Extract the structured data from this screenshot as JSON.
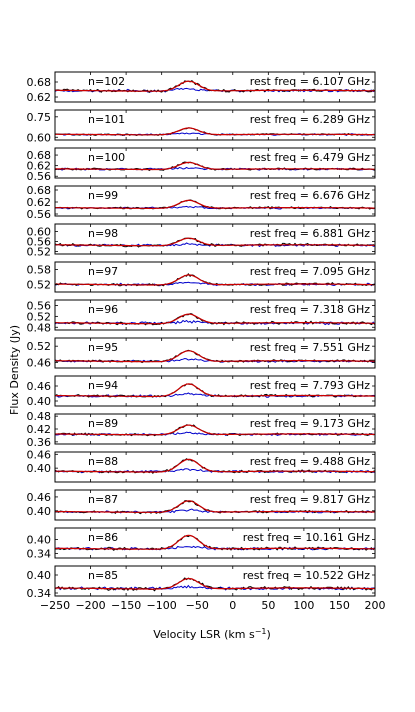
{
  "chart_data": {
    "type": "line",
    "ylabel": "Flux Density (Jy)",
    "xlabel_main": "Velocity LSR (km",
    "xlabel_unit": "s",
    "xlabel_exp": "−1",
    "xlabel_close": ")",
    "xlim": [
      -250,
      200
    ],
    "xticks": [
      -250,
      -200,
      -150,
      -100,
      -50,
      0,
      50,
      100,
      150,
      200
    ],
    "xtick_labels": [
      "−250",
      "−200",
      "−150",
      "−100",
      "−50",
      "0",
      "50",
      "100",
      "150",
      "200"
    ],
    "colors": {
      "data": "#000000",
      "fit": "#cc0000",
      "reference": "#0000cc"
    },
    "line_center": -62,
    "line_width": 14,
    "panels": [
      {
        "label": "n=102",
        "freq": "rest freq = 6.107 GHz",
        "ylim": [
          0.6,
          0.72
        ],
        "yticks": [
          0.62,
          0.68
        ],
        "ytick_labels": [
          "0.62",
          "0.68"
        ],
        "baseline": 0.645,
        "peak": 0.04,
        "noise": 0.006
      },
      {
        "label": "n=101",
        "freq": "rest freq = 6.289 GHz",
        "ylim": [
          0.58,
          0.8
        ],
        "yticks": [
          0.6,
          0.75
        ],
        "ytick_labels": [
          "0.60",
          "0.75"
        ],
        "baseline": 0.62,
        "peak": 0.05,
        "noise": 0.007
      },
      {
        "label": "n=100",
        "freq": "rest freq = 6.479 GHz",
        "ylim": [
          0.55,
          0.72
        ],
        "yticks": [
          0.56,
          0.62,
          0.68
        ],
        "ytick_labels": [
          "0.56",
          "0.62",
          "0.68"
        ],
        "baseline": 0.6,
        "peak": 0.04,
        "noise": 0.007
      },
      {
        "label": "n=99",
        "freq": "rest freq = 6.676 GHz",
        "ylim": [
          0.55,
          0.7
        ],
        "yticks": [
          0.56,
          0.62,
          0.68
        ],
        "ytick_labels": [
          "0.56",
          "0.62",
          "0.68"
        ],
        "baseline": 0.59,
        "peak": 0.04,
        "noise": 0.006
      },
      {
        "label": "n=98",
        "freq": "rest freq = 6.881 GHz",
        "ylim": [
          0.51,
          0.63
        ],
        "yticks": [
          0.52,
          0.56,
          0.6
        ],
        "ytick_labels": [
          "0.52",
          "0.56",
          "0.60"
        ],
        "baseline": 0.545,
        "peak": 0.03,
        "noise": 0.006
      },
      {
        "label": "n=97",
        "freq": "rest freq = 7.095 GHz",
        "ylim": [
          0.49,
          0.61
        ],
        "yticks": [
          0.52,
          0.58
        ],
        "ytick_labels": [
          "0.52",
          "0.58"
        ],
        "baseline": 0.52,
        "peak": 0.04,
        "noise": 0.006
      },
      {
        "label": "n=96",
        "freq": "rest freq = 7.318 GHz",
        "ylim": [
          0.47,
          0.58
        ],
        "yticks": [
          0.48,
          0.52,
          0.56
        ],
        "ytick_labels": [
          "0.48",
          "0.52",
          "0.56"
        ],
        "baseline": 0.495,
        "peak": 0.035,
        "noise": 0.006
      },
      {
        "label": "n=95",
        "freq": "rest freq = 7.551 GHz",
        "ylim": [
          0.44,
          0.55
        ],
        "yticks": [
          0.46,
          0.52
        ],
        "ytick_labels": [
          "0.46",
          "0.52"
        ],
        "baseline": 0.465,
        "peak": 0.04,
        "noise": 0.005
      },
      {
        "label": "n=94",
        "freq": "rest freq = 7.793 GHz",
        "ylim": [
          0.38,
          0.5
        ],
        "yticks": [
          0.4,
          0.46
        ],
        "ytick_labels": [
          "0.40",
          "0.46"
        ],
        "baseline": 0.42,
        "peak": 0.05,
        "noise": 0.006
      },
      {
        "label": "n=89",
        "freq": "rest freq = 9.173 GHz",
        "ylim": [
          0.35,
          0.49
        ],
        "yticks": [
          0.36,
          0.42,
          0.48
        ],
        "ytick_labels": [
          "0.36",
          "0.42",
          "0.48"
        ],
        "baseline": 0.395,
        "peak": 0.045,
        "noise": 0.006
      },
      {
        "label": "n=88",
        "freq": "rest freq = 9.488 GHz",
        "ylim": [
          0.34,
          0.47
        ],
        "yticks": [
          0.4,
          0.46
        ],
        "ytick_labels": [
          "0.40",
          "0.46"
        ],
        "baseline": 0.385,
        "peak": 0.055,
        "noise": 0.006
      },
      {
        "label": "n=87",
        "freq": "rest freq = 9.817 GHz",
        "ylim": [
          0.36,
          0.49
        ],
        "yticks": [
          0.4,
          0.46
        ],
        "ytick_labels": [
          "0.40",
          "0.46"
        ],
        "baseline": 0.395,
        "peak": 0.05,
        "noise": 0.006
      },
      {
        "label": "n=86",
        "freq": "rest freq = 10.161 GHz",
        "ylim": [
          0.32,
          0.45
        ],
        "yticks": [
          0.34,
          0.4
        ],
        "ytick_labels": [
          "0.34",
          "0.40"
        ],
        "baseline": 0.36,
        "peak": 0.06,
        "noise": 0.007
      },
      {
        "label": "n=85",
        "freq": "rest freq = 10.522 GHz",
        "ylim": [
          0.33,
          0.43
        ],
        "yticks": [
          0.34,
          0.4
        ],
        "ytick_labels": [
          "0.34",
          "0.40"
        ],
        "baseline": 0.355,
        "peak": 0.035,
        "noise": 0.006
      }
    ]
  }
}
